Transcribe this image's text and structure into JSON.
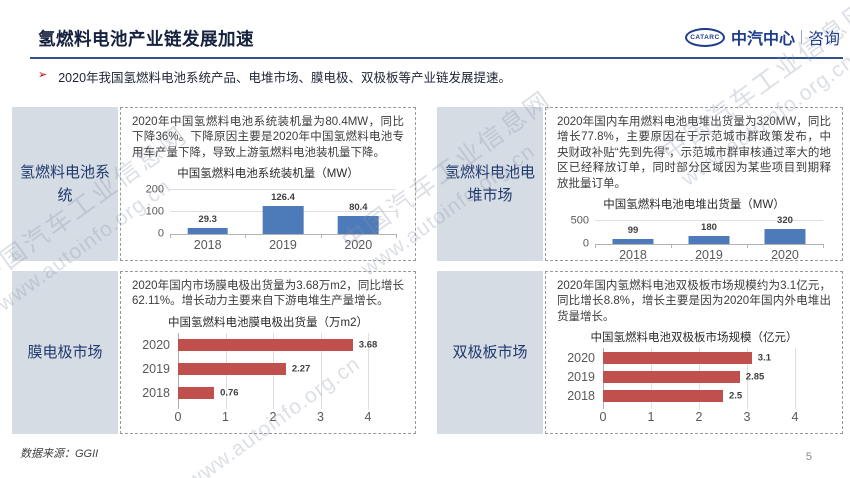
{
  "header": {
    "title": "氢燃料电池产业链发展加速",
    "logo": {
      "badge": "CATARC",
      "brand": "中汽中心",
      "suffix": "咨询"
    }
  },
  "bullet": {
    "marker": "➢",
    "text": "2020年我国氢燃料电池系统产品、电堆市场、膜电极、双极板等产业链发展提速。"
  },
  "panels": [
    {
      "sidebar": "氢燃料电池系统",
      "description": "2020年中国氢燃料电池系统装机量为80.4MW，同比下降36%。下降原因主要是2020年中国氢燃料电池专用车产量下降，导致上游氢燃料电池装机量下降。"
    },
    {
      "sidebar": "氢燃料电池电堆市场",
      "description": "2020年国内车用燃料电池电堆出货量为320MW，同比增长77.8%，主要原因在于示范城市群政策发布，中央财政补贴“先到先得”，示范城市群审核通过率大的地区已经释放订单，同时部分区域因为某些项目到期释放批量订单。"
    },
    {
      "sidebar": "膜电极市场",
      "description": "2020年国内市场膜电极出货量为3.68万m2，同比增长62.11%。增长动力主要来自下游电堆生产量增长。"
    },
    {
      "sidebar": "双极板市场",
      "description": "2020年国内氢燃料电池双极板市场规模约为3.1亿元，同比增长8.8%，增长主要是因为2020年国内外电堆出货量增长。"
    }
  ],
  "chart_data": [
    {
      "type": "bar",
      "orientation": "vertical",
      "title": "中国氢燃料电池系统装机量（MW）",
      "categories": [
        "2018",
        "2019",
        "2020"
      ],
      "values": [
        29.3,
        126.4,
        80.4
      ],
      "ylim": [
        0,
        200
      ],
      "yticks": [
        0,
        100,
        200
      ],
      "grid": true,
      "legend": false,
      "bar_color": "#4d7ab8"
    },
    {
      "type": "bar",
      "orientation": "vertical",
      "title": "中国氢燃料电池电堆出货量（MW）",
      "categories": [
        "2018",
        "2019",
        "2020"
      ],
      "values": [
        99,
        180,
        320
      ],
      "ylim": [
        0,
        500
      ],
      "yticks": [
        0,
        500
      ],
      "grid": true,
      "legend": false,
      "bar_color": "#4d7ab8"
    },
    {
      "type": "bar",
      "orientation": "horizontal",
      "title": "中国氢燃料电池膜电极出货量（万m2）",
      "categories": [
        "2020",
        "2019",
        "2018"
      ],
      "values": [
        3.68,
        2.27,
        0.76
      ],
      "xlim": [
        0,
        4
      ],
      "xticks": [
        0,
        1,
        2,
        3,
        4
      ],
      "grid": true,
      "legend": false,
      "bar_color": "#c0504d"
    },
    {
      "type": "bar",
      "orientation": "horizontal",
      "title": "中国氢燃料电池双极板市场规模（亿元）",
      "categories": [
        "2020",
        "2019",
        "2018"
      ],
      "values": [
        3.1,
        2.85,
        2.5
      ],
      "xlim": [
        0,
        4
      ],
      "xticks": [
        0,
        1,
        2,
        3,
        4
      ],
      "grid": true,
      "legend": false,
      "bar_color": "#c0504d"
    }
  ],
  "footer": {
    "source": "数据来源：GGII",
    "page": "5"
  },
  "watermark": {
    "line1": "中国汽车工业信息网",
    "line2": "www.autoinfo.org.cn"
  },
  "colors": {
    "title_navy": "#15213e",
    "brand_blue": "#1e3c8c",
    "rule_blue": "#31508e",
    "marker_red": "#c00000",
    "sidebar_bg": "#d6dce4",
    "bar_blue": "#4d7ab8",
    "bar_red": "#c0504d"
  }
}
